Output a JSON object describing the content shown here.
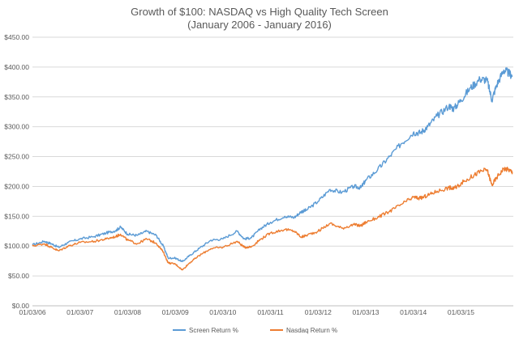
{
  "chart_data": {
    "type": "line",
    "title": "Growth of $100: NASDAQ vs High Quality Tech Screen",
    "subtitle": "(January 2006 - January 2016)",
    "xlabel": "",
    "ylabel": "",
    "x_ticks": [
      "01/03/06",
      "01/03/07",
      "01/03/08",
      "01/03/09",
      "01/03/10",
      "01/03/11",
      "01/03/12",
      "01/03/13",
      "01/03/14",
      "01/03/15"
    ],
    "x_range": [
      2006.0,
      2016.1
    ],
    "y_ticks": [
      "$0.00",
      "$50.00",
      "$100.00",
      "$150.00",
      "$200.00",
      "$250.00",
      "$300.00",
      "$350.00",
      "$400.00",
      "$450.00"
    ],
    "ylim": [
      0,
      450
    ],
    "grid": "horizontal",
    "legend_position": "bottom",
    "series": [
      {
        "name": "Screen Return %",
        "color": "#5B9BD5",
        "points": [
          [
            2006.0,
            102
          ],
          [
            2006.25,
            108
          ],
          [
            2006.4,
            104
          ],
          [
            2006.55,
            98
          ],
          [
            2006.75,
            106
          ],
          [
            2007.0,
            112
          ],
          [
            2007.3,
            116
          ],
          [
            2007.55,
            122
          ],
          [
            2007.75,
            126
          ],
          [
            2007.85,
            132
          ],
          [
            2008.0,
            120
          ],
          [
            2008.2,
            118
          ],
          [
            2008.4,
            125
          ],
          [
            2008.6,
            118
          ],
          [
            2008.75,
            100
          ],
          [
            2008.85,
            80
          ],
          [
            2009.0,
            80
          ],
          [
            2009.15,
            74
          ],
          [
            2009.3,
            84
          ],
          [
            2009.5,
            96
          ],
          [
            2009.75,
            110
          ],
          [
            2010.0,
            112
          ],
          [
            2010.3,
            125
          ],
          [
            2010.45,
            112
          ],
          [
            2010.6,
            114
          ],
          [
            2010.8,
            130
          ],
          [
            2011.0,
            140
          ],
          [
            2011.3,
            150
          ],
          [
            2011.5,
            148
          ],
          [
            2011.65,
            158
          ],
          [
            2011.75,
            160
          ],
          [
            2012.0,
            175
          ],
          [
            2012.25,
            195
          ],
          [
            2012.5,
            190
          ],
          [
            2012.75,
            200
          ],
          [
            2012.9,
            198
          ],
          [
            2013.0,
            210
          ],
          [
            2013.25,
            228
          ],
          [
            2013.5,
            250
          ],
          [
            2013.75,
            272
          ],
          [
            2014.0,
            290
          ],
          [
            2014.15,
            290
          ],
          [
            2014.3,
            300
          ],
          [
            2014.5,
            318
          ],
          [
            2014.75,
            335
          ],
          [
            2014.85,
            330
          ],
          [
            2015.0,
            345
          ],
          [
            2015.2,
            365
          ],
          [
            2015.4,
            380
          ],
          [
            2015.55,
            378
          ],
          [
            2015.65,
            345
          ],
          [
            2015.75,
            370
          ],
          [
            2015.9,
            395
          ],
          [
            2016.0,
            390
          ],
          [
            2016.08,
            385
          ]
        ]
      },
      {
        "name": "Nasdaq Return %",
        "color": "#ED7D31",
        "points": [
          [
            2006.0,
            100
          ],
          [
            2006.25,
            104
          ],
          [
            2006.4,
            98
          ],
          [
            2006.55,
            92
          ],
          [
            2006.75,
            100
          ],
          [
            2007.0,
            106
          ],
          [
            2007.3,
            108
          ],
          [
            2007.55,
            112
          ],
          [
            2007.75,
            116
          ],
          [
            2007.85,
            120
          ],
          [
            2008.0,
            110
          ],
          [
            2008.2,
            104
          ],
          [
            2008.4,
            112
          ],
          [
            2008.6,
            105
          ],
          [
            2008.75,
            90
          ],
          [
            2008.85,
            72
          ],
          [
            2009.0,
            70
          ],
          [
            2009.15,
            60
          ],
          [
            2009.3,
            72
          ],
          [
            2009.5,
            84
          ],
          [
            2009.75,
            96
          ],
          [
            2010.0,
            98
          ],
          [
            2010.3,
            108
          ],
          [
            2010.45,
            98
          ],
          [
            2010.6,
            99
          ],
          [
            2010.8,
            112
          ],
          [
            2011.0,
            122
          ],
          [
            2011.3,
            128
          ],
          [
            2011.5,
            125
          ],
          [
            2011.65,
            115
          ],
          [
            2011.75,
            118
          ],
          [
            2012.0,
            125
          ],
          [
            2012.25,
            138
          ],
          [
            2012.5,
            130
          ],
          [
            2012.75,
            136
          ],
          [
            2012.9,
            134
          ],
          [
            2013.0,
            140
          ],
          [
            2013.25,
            148
          ],
          [
            2013.5,
            158
          ],
          [
            2013.75,
            170
          ],
          [
            2014.0,
            182
          ],
          [
            2014.15,
            180
          ],
          [
            2014.3,
            185
          ],
          [
            2014.5,
            192
          ],
          [
            2014.75,
            198
          ],
          [
            2014.85,
            196
          ],
          [
            2015.0,
            205
          ],
          [
            2015.2,
            215
          ],
          [
            2015.4,
            225
          ],
          [
            2015.55,
            228
          ],
          [
            2015.65,
            202
          ],
          [
            2015.75,
            215
          ],
          [
            2015.9,
            230
          ],
          [
            2016.0,
            228
          ],
          [
            2016.08,
            224
          ]
        ]
      }
    ]
  }
}
